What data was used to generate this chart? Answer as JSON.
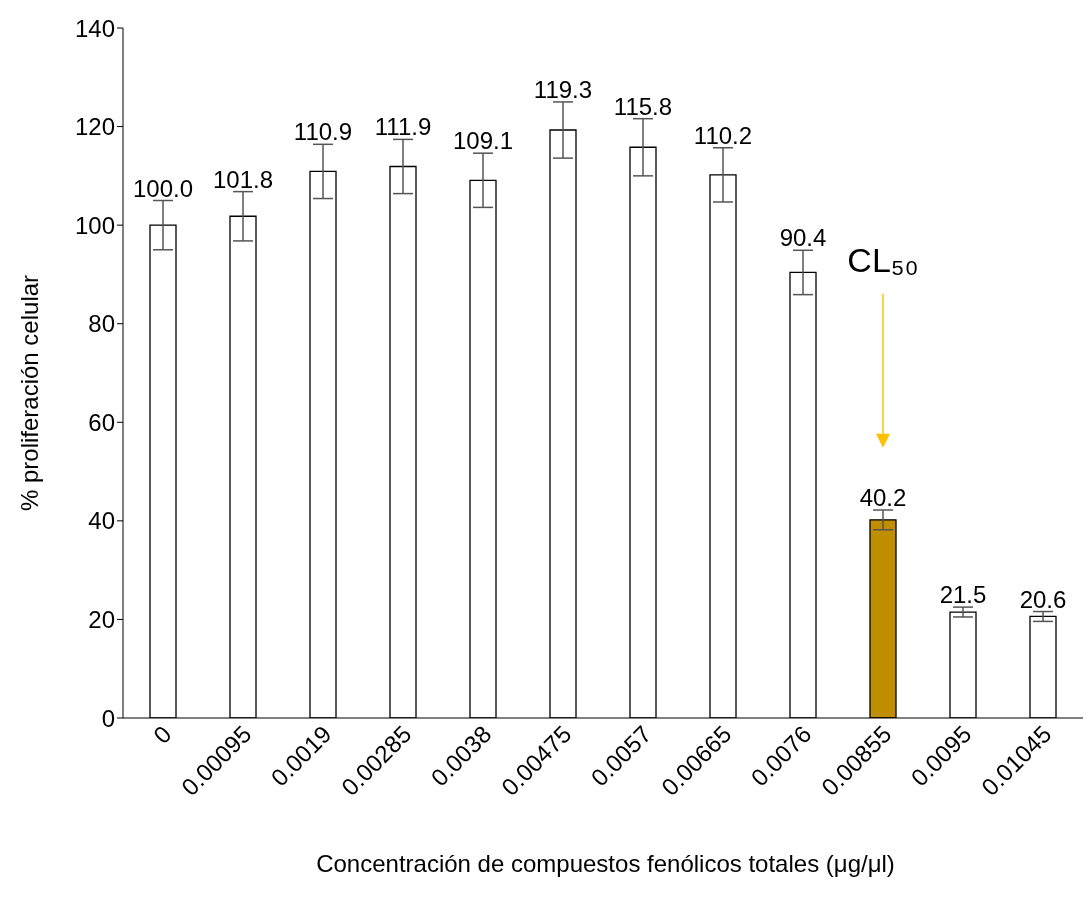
{
  "chart_data": {
    "type": "bar",
    "xlabel": "Concentración de compuestos fenólicos totales (μg/μl)",
    "ylabel": "% proliferación celular",
    "categories": [
      "0",
      "0.00095",
      "0.0019",
      "0.00285",
      "0.0038",
      "0.00475",
      "0.0057",
      "0.00665",
      "0.0076",
      "0.00855",
      "0.0095",
      "0.01045"
    ],
    "values": [
      100.0,
      101.8,
      110.9,
      111.9,
      109.1,
      119.3,
      115.8,
      110.2,
      90.4,
      40.2,
      21.5,
      20.6
    ],
    "value_labels": [
      "100.0",
      "101.8",
      "110.9",
      "111.9",
      "109.1",
      "119.3",
      "115.8",
      "110.2",
      "90.4",
      "40.2",
      "21.5",
      "20.6"
    ],
    "errors": [
      5,
      5,
      5.5,
      5.5,
      5.5,
      5.7,
      5.8,
      5.5,
      4.5,
      2,
      1,
      1
    ],
    "colors": [
      "#ffffff",
      "#ffffff",
      "#ffffff",
      "#ffffff",
      "#ffffff",
      "#ffffff",
      "#ffffff",
      "#ffffff",
      "#ffffff",
      "#bf8f00",
      "#ffffff",
      "#ffffff"
    ],
    "ylim": [
      0,
      140
    ],
    "yticks": [
      0,
      20,
      40,
      60,
      80,
      100,
      120,
      140
    ],
    "grid": false,
    "legend": false,
    "annotations": [
      "CL₅₀"
    ]
  }
}
